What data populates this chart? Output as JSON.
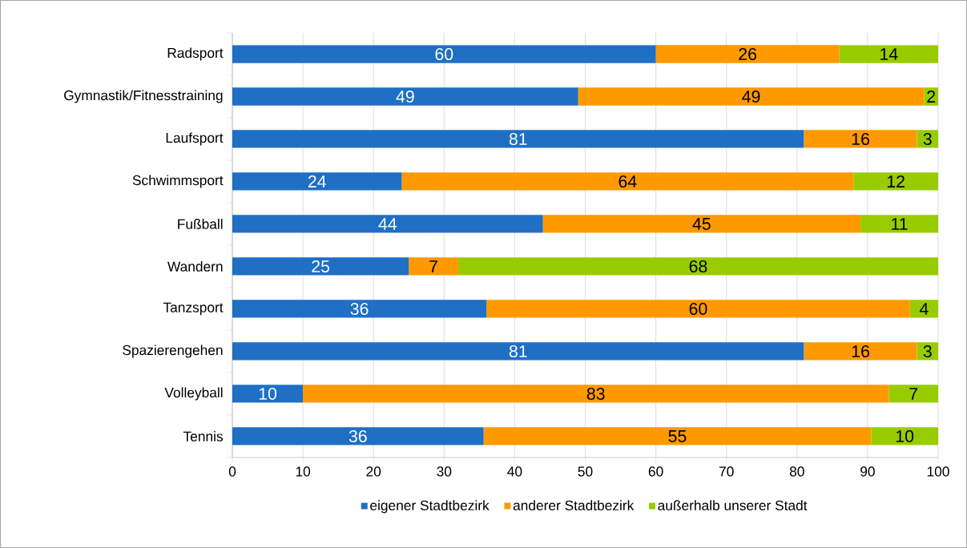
{
  "chart_data": {
    "type": "bar",
    "orientation": "horizontal",
    "stacked": true,
    "categories": [
      "Radsport",
      "Gymnastik/Fitnesstraining",
      "Laufsport",
      "Schwimmsport",
      "Fußball",
      "Wandern",
      "Tanzsport",
      "Spazierengehen",
      "Volleyball",
      "Tennis"
    ],
    "series": [
      {
        "name": "eigener Stadtbezirk",
        "color": "#1f6fc5",
        "values": [
          60,
          49,
          81,
          24,
          44,
          25,
          36,
          81,
          10,
          35.6
        ],
        "value_labels": [
          "60",
          "49",
          "81",
          "24",
          "44",
          "25",
          "36",
          "81",
          "10",
          "36"
        ]
      },
      {
        "name": "anderer Stadtbezirk",
        "color": "#ff9900",
        "values": [
          26,
          49,
          16,
          64,
          45,
          7,
          60,
          16,
          83,
          54.9
        ],
        "value_labels": [
          "26",
          "49",
          "16",
          "64",
          "45",
          "7",
          "60",
          "16",
          "83",
          "55"
        ]
      },
      {
        "name": "außerhalb unserer Stadt",
        "color": "#99cc00",
        "values": [
          14,
          2,
          3,
          12,
          11,
          68,
          4,
          3,
          7,
          9.5
        ],
        "value_labels": [
          "14",
          "2",
          "3",
          "12",
          "11",
          "68",
          "4",
          "3",
          "7",
          "10"
        ]
      }
    ],
    "xlim": [
      0,
      100
    ],
    "xticks": [
      0,
      10,
      20,
      30,
      40,
      50,
      60,
      70,
      80,
      90,
      100
    ],
    "grid": "x",
    "legend": "bottom"
  }
}
